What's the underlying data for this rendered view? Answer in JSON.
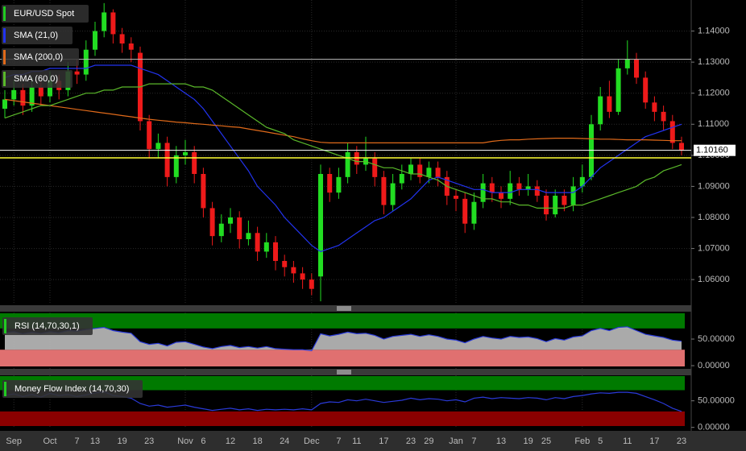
{
  "chart_data": [
    {
      "type": "candlestick",
      "categories": [
        null,
        "Sep",
        null,
        null,
        null,
        "Oct",
        null,
        null,
        "7",
        null,
        "13",
        null,
        null,
        "19",
        null,
        null,
        "23",
        null,
        null,
        null,
        "Nov",
        null,
        "6",
        null,
        null,
        "12",
        null,
        null,
        "18",
        null,
        null,
        "24",
        null,
        null,
        "Dec",
        null,
        null,
        "7",
        null,
        "11",
        null,
        null,
        "17",
        null,
        null,
        "23",
        null,
        "29",
        null,
        null,
        "Jan",
        null,
        "7",
        null,
        null,
        "13",
        null,
        null,
        "19",
        null,
        "25",
        null,
        null,
        null,
        "Feb",
        null,
        "5",
        null,
        null,
        "11",
        null,
        null,
        "17",
        null,
        null,
        "23"
      ],
      "ylim": [
        1.052,
        1.15
      ],
      "yticks": [
        {
          "value": 1.14,
          "label": "1.14000"
        },
        {
          "value": 1.13,
          "label": "1.13000"
        },
        {
          "value": 1.12,
          "label": "1.12000"
        },
        {
          "value": 1.11,
          "label": "1.11000"
        },
        {
          "value": 1.1,
          "label": "1.10000"
        },
        {
          "value": 1.09,
          "label": "1.09000"
        },
        {
          "value": 1.08,
          "label": "1.08000"
        },
        {
          "value": 1.07,
          "label": "1.07000"
        },
        {
          "value": 1.06,
          "label": "1.06000"
        }
      ],
      "grid": true,
      "series": [
        {
          "name": "EUR/USD Spot",
          "color": "#22cc22",
          "up_color": "#22dd22",
          "down_color": "#ee1a1a",
          "open": [
            1.115,
            1.118,
            1.121,
            1.116,
            1.122,
            1.119,
            1.124,
            1.121,
            1.127,
            1.126,
            1.134,
            1.14,
            1.146,
            1.139,
            1.136,
            1.133,
            1.111,
            1.102,
            1.104,
            1.093,
            1.1,
            1.101,
            1.094,
            1.083,
            1.074,
            1.078,
            1.08,
            1.073,
            1.075,
            1.069,
            1.072,
            1.066,
            1.064,
            1.062,
            1.06,
            1.061,
            1.094,
            1.088,
            1.093,
            1.101,
            1.097,
            1.099,
            1.093,
            1.084,
            1.091,
            1.094,
            1.097,
            1.093,
            1.096,
            1.093,
            1.087,
            1.086,
            1.078,
            1.085,
            1.091,
            1.088,
            1.086,
            1.091,
            1.089,
            1.09,
            1.087,
            1.081,
            1.087,
            1.084,
            1.09,
            1.093,
            1.11,
            1.119,
            1.114,
            1.128,
            1.131,
            1.125,
            1.117,
            1.114,
            1.111,
            1.104
          ],
          "high": [
            1.121,
            1.124,
            1.123,
            1.125,
            1.124,
            1.127,
            1.126,
            1.13,
            1.131,
            1.137,
            1.143,
            1.149,
            1.147,
            1.141,
            1.138,
            1.135,
            1.113,
            1.107,
            1.106,
            1.103,
            1.105,
            1.103,
            1.096,
            1.085,
            1.081,
            1.083,
            1.082,
            1.079,
            1.077,
            1.075,
            1.074,
            1.068,
            1.066,
            1.064,
            1.062,
            1.097,
            1.096,
            1.096,
            1.104,
            1.103,
            1.106,
            1.101,
            1.095,
            1.094,
            1.097,
            1.099,
            1.099,
            1.098,
            1.098,
            1.095,
            1.089,
            1.088,
            1.088,
            1.094,
            1.093,
            1.09,
            1.095,
            1.093,
            1.094,
            1.092,
            1.089,
            1.089,
            1.089,
            1.093,
            1.097,
            1.113,
            1.122,
            1.124,
            1.131,
            1.137,
            1.133,
            1.127,
            1.119,
            1.116,
            1.113,
            1.106
          ],
          "low": [
            1.112,
            1.116,
            1.113,
            1.114,
            1.116,
            1.117,
            1.118,
            1.119,
            1.123,
            1.124,
            1.132,
            1.138,
            1.136,
            1.133,
            1.13,
            1.108,
            1.099,
            1.099,
            1.09,
            1.091,
            1.097,
            1.091,
            1.08,
            1.071,
            1.072,
            1.075,
            1.07,
            1.071,
            1.066,
            1.067,
            1.063,
            1.061,
            1.059,
            1.057,
            1.055,
            1.053,
            1.085,
            1.086,
            1.091,
            1.094,
            1.095,
            1.09,
            1.081,
            1.082,
            1.089,
            1.092,
            1.091,
            1.091,
            1.09,
            1.084,
            1.082,
            1.075,
            1.076,
            1.083,
            1.085,
            1.083,
            1.084,
            1.087,
            1.087,
            1.085,
            1.079,
            1.08,
            1.082,
            1.082,
            1.088,
            1.092,
            1.108,
            1.112,
            1.113,
            1.126,
            1.123,
            1.115,
            1.111,
            1.108,
            1.102,
            1.1
          ],
          "close": [
            1.118,
            1.121,
            1.116,
            1.122,
            1.119,
            1.124,
            1.121,
            1.127,
            1.126,
            1.134,
            1.14,
            1.146,
            1.139,
            1.136,
            1.134,
            1.111,
            1.102,
            1.104,
            1.093,
            1.1,
            1.101,
            1.094,
            1.083,
            1.074,
            1.078,
            1.08,
            1.073,
            1.075,
            1.069,
            1.072,
            1.066,
            1.064,
            1.062,
            1.06,
            1.057,
            1.094,
            1.088,
            1.093,
            1.101,
            1.097,
            1.099,
            1.093,
            1.084,
            1.091,
            1.094,
            1.097,
            1.093,
            1.096,
            1.093,
            1.087,
            1.086,
            1.078,
            1.085,
            1.091,
            1.088,
            1.086,
            1.091,
            1.089,
            1.09,
            1.087,
            1.081,
            1.087,
            1.084,
            1.09,
            1.093,
            1.11,
            1.119,
            1.114,
            1.128,
            1.131,
            1.125,
            1.117,
            1.114,
            1.111,
            1.104,
            1.1016
          ]
        },
        {
          "name": "SMA (21,0)",
          "color": "#2233ee",
          "values": [
            1.125,
            1.126,
            1.126,
            1.127,
            1.127,
            1.128,
            1.128,
            1.128,
            1.128,
            1.128,
            1.129,
            1.129,
            1.129,
            1.129,
            1.129,
            1.128,
            1.127,
            1.126,
            1.124,
            1.122,
            1.12,
            1.118,
            1.115,
            1.111,
            1.107,
            1.103,
            1.099,
            1.095,
            1.09,
            1.087,
            1.084,
            1.08,
            1.077,
            1.074,
            1.071,
            1.069,
            1.07,
            1.071,
            1.073,
            1.075,
            1.077,
            1.079,
            1.08,
            1.082,
            1.084,
            1.086,
            1.089,
            1.092,
            1.093,
            1.092,
            1.091,
            1.09,
            1.089,
            1.089,
            1.088,
            1.088,
            1.088,
            1.089,
            1.089,
            1.089,
            1.088,
            1.088,
            1.088,
            1.088,
            1.09,
            1.093,
            1.096,
            1.098,
            1.1,
            1.102,
            1.104,
            1.106,
            1.107,
            1.108,
            1.109,
            1.11
          ]
        },
        {
          "name": "SMA (200,0)",
          "color": "#e06a1a",
          "values": [
            1.118,
            1.1176,
            1.1172,
            1.1168,
            1.1164,
            1.116,
            1.1156,
            1.1152,
            1.1148,
            1.1144,
            1.114,
            1.1136,
            1.1132,
            1.1128,
            1.1124,
            1.112,
            1.1116,
            1.1113,
            1.111,
            1.1107,
            1.1105,
            1.1102,
            1.11,
            1.1097,
            1.1095,
            1.1092,
            1.109,
            1.1085,
            1.108,
            1.1075,
            1.107,
            1.1065,
            1.106,
            1.1053,
            1.1047,
            1.1042,
            1.104,
            1.104,
            1.104,
            1.104,
            1.104,
            1.104,
            1.104,
            1.104,
            1.104,
            1.104,
            1.104,
            1.104,
            1.104,
            1.104,
            1.104,
            1.104,
            1.104,
            1.104,
            1.1045,
            1.1048,
            1.105,
            1.105,
            1.1052,
            1.1053,
            1.1054,
            1.1055,
            1.1055,
            1.1055,
            1.1054,
            1.1053,
            1.1052,
            1.1052,
            1.1051,
            1.105,
            1.105,
            1.105,
            1.1049,
            1.1048,
            1.1047,
            1.1047
          ]
        },
        {
          "name": "SMA (60,0)",
          "color": "#5ab82a",
          "values": [
            1.112,
            1.113,
            1.114,
            1.115,
            1.116,
            1.116,
            1.117,
            1.118,
            1.119,
            1.12,
            1.12,
            1.121,
            1.121,
            1.122,
            1.122,
            1.122,
            1.123,
            1.123,
            1.123,
            1.123,
            1.123,
            1.122,
            1.122,
            1.121,
            1.119,
            1.117,
            1.115,
            1.113,
            1.111,
            1.109,
            1.108,
            1.107,
            1.105,
            1.104,
            1.103,
            1.102,
            1.101,
            1.1,
            1.099,
            1.098,
            1.098,
            1.097,
            1.096,
            1.096,
            1.095,
            1.094,
            1.094,
            1.093,
            1.092,
            1.09,
            1.089,
            1.088,
            1.087,
            1.086,
            1.086,
            1.085,
            1.085,
            1.084,
            1.084,
            1.083,
            1.083,
            1.083,
            1.083,
            1.084,
            1.084,
            1.085,
            1.086,
            1.087,
            1.088,
            1.089,
            1.09,
            1.092,
            1.093,
            1.095,
            1.096,
            1.097
          ]
        }
      ],
      "levels": [
        {
          "value": 1.1309,
          "color": "#bbbbbb"
        },
        {
          "value": 1.0992,
          "color": "#ffff33"
        }
      ],
      "last_price": {
        "value": 1.1016,
        "label": "1.10160"
      }
    },
    {
      "type": "area-line",
      "title": "RSI (14,70,30,1)",
      "ylim": [
        -6,
        100
      ],
      "yticks": [
        {
          "value": 50,
          "label": "50.00000"
        },
        {
          "value": 0,
          "label": "0.00000"
        }
      ],
      "upper_band": 70,
      "lower_band": 30,
      "series": [
        {
          "color": "#2a3ad8",
          "values": [
            62,
            64,
            60,
            63,
            61,
            64,
            62,
            66,
            65,
            68,
            70,
            72,
            66,
            63,
            61,
            45,
            40,
            42,
            37,
            44,
            45,
            40,
            35,
            32,
            36,
            38,
            34,
            36,
            33,
            36,
            32,
            31,
            30,
            30,
            28,
            60,
            56,
            59,
            63,
            60,
            61,
            57,
            50,
            55,
            57,
            59,
            55,
            58,
            55,
            50,
            48,
            43,
            50,
            55,
            52,
            50,
            55,
            53,
            54,
            51,
            45,
            51,
            48,
            54,
            56,
            66,
            70,
            66,
            72,
            73,
            66,
            59,
            56,
            53,
            48,
            46
          ]
        }
      ]
    },
    {
      "type": "line",
      "title": "Money Flow Index (14,70,30)",
      "ylim": [
        -2,
        98
      ],
      "yticks": [
        {
          "value": 50,
          "label": "50.00000"
        },
        {
          "value": 0,
          "label": "0.00000"
        }
      ],
      "upper_band": 70,
      "lower_band": 30,
      "series": [
        {
          "color": "#2a3ad8",
          "values": [
            60,
            63,
            58,
            62,
            57,
            64,
            60,
            62,
            58,
            61,
            65,
            67,
            60,
            58,
            55,
            45,
            40,
            42,
            38,
            40,
            42,
            38,
            35,
            32,
            34,
            36,
            33,
            35,
            32,
            34,
            33,
            34,
            33,
            35,
            33,
            45,
            48,
            47,
            52,
            50,
            53,
            50,
            47,
            49,
            51,
            55,
            52,
            54,
            53,
            50,
            52,
            48,
            55,
            57,
            54,
            56,
            55,
            54,
            56,
            55,
            52,
            56,
            54,
            58,
            60,
            63,
            65,
            64,
            66,
            66,
            64,
            58,
            52,
            45,
            36,
            30
          ]
        }
      ]
    }
  ]
}
